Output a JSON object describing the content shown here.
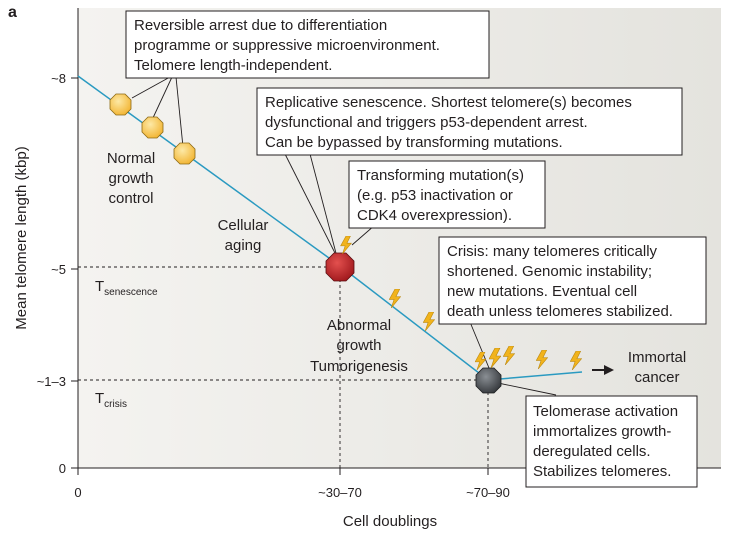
{
  "panel_label": "a",
  "axes": {
    "x_label": "Cell doublings",
    "y_label": "Mean telomere length (kbp)",
    "x_ticks": [
      "0",
      "~30–70",
      "~70–90"
    ],
    "y_ticks": [
      "~8",
      "~5",
      "~1–3",
      "0"
    ],
    "t_senescence": {
      "main": "T",
      "sub": "senescence"
    },
    "t_crisis": {
      "main": "T",
      "sub": "crisis"
    }
  },
  "labels": {
    "normal": [
      "Normal",
      "growth",
      "control"
    ],
    "cellular_aging": [
      "Cellular",
      "aging"
    ],
    "abnormal": [
      "Abnormal",
      "growth",
      "Tumorigenesis"
    ],
    "immortal": [
      "Immortal",
      "cancer"
    ]
  },
  "boxes": {
    "reversible": [
      "Reversible arrest due to differentiation",
      "programme or suppressive microenvironment.",
      "Telomere length-independent."
    ],
    "senescence": [
      "Replicative senescence. Shortest telomere(s) becomes",
      "dysfunctional and triggers p53-dependent arrest.",
      "Can be bypassed by transforming mutations."
    ],
    "transforming": [
      "Transforming mutation(s)",
      "(e.g. p53 inactivation or",
      "CDK4 overexpression)."
    ],
    "crisis": [
      "Crisis: many telomeres critically",
      "shortened. Genomic instability;",
      "new mutations. Eventual cell",
      "death unless telomeres stabilized."
    ],
    "telomerase": [
      "Telomerase activation",
      "immortalizes growth-",
      "deregulated cells.",
      "Stabilizes telomeres."
    ]
  },
  "colors": {
    "plot_bg": "#ecebe7",
    "line": "#2a9ac1",
    "normal_octagon": "#f7c34d",
    "senescence_octagon": "#c0262d",
    "crisis_octagon": "#4a4d51",
    "lightning": "#f1b31c"
  }
}
